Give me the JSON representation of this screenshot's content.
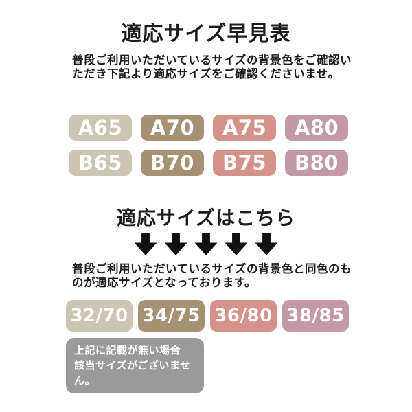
{
  "header": {
    "title": "適応サイズ早見表",
    "description": [
      "普段ご利用いただいているサイズの背景色をご確認い",
      "ただき下記より適応サイズをご確認くださいませ。"
    ]
  },
  "colors": {
    "beige": "#ccc5b3",
    "tan": "#a59173",
    "rose": "#d4928b",
    "mauve": "#c399a5",
    "gray": "#9a9a9a",
    "arrow": "#111111",
    "badge_text": "#ffffff"
  },
  "size_chart": {
    "rows": [
      {
        "cells": [
          {
            "label": "A65",
            "color": "beige"
          },
          {
            "label": "A70",
            "color": "tan"
          },
          {
            "label": "A75",
            "color": "rose"
          },
          {
            "label": "A80",
            "color": "mauve"
          }
        ]
      },
      {
        "cells": [
          {
            "label": "B65",
            "color": "beige"
          },
          {
            "label": "B70",
            "color": "tan"
          },
          {
            "label": "B75",
            "color": "rose"
          },
          {
            "label": "B80",
            "color": "mauve"
          }
        ]
      }
    ]
  },
  "pointer_section": {
    "heading": "適応サイズはこちら",
    "arrow_count": 5,
    "description": [
      "普段ご利用いただいているサイズの背景色と同色のも",
      "のが適応サイズとなっております。"
    ]
  },
  "adapted_sizes": {
    "cells": [
      {
        "label": "32/70",
        "color": "beige"
      },
      {
        "label": "34/75",
        "color": "tan"
      },
      {
        "label": "36/80",
        "color": "rose"
      },
      {
        "label": "38/85",
        "color": "mauve"
      }
    ]
  },
  "note": {
    "color": "gray",
    "lines": [
      "上記に記載が無い場合",
      "該当サイズがございません。"
    ]
  }
}
